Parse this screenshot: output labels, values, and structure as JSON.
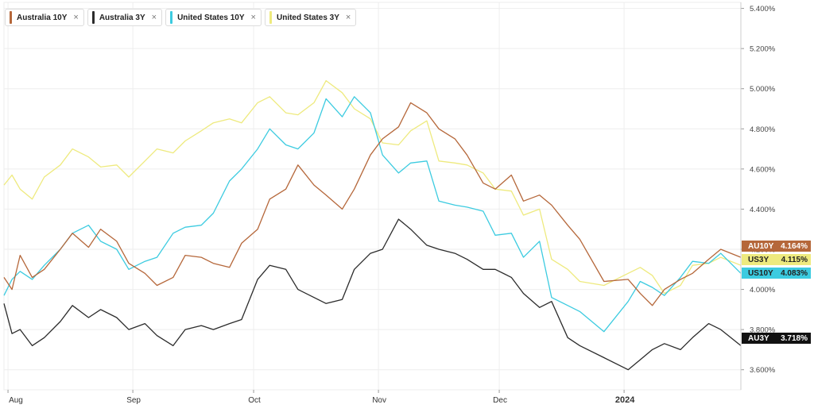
{
  "legend": [
    {
      "label": "Australia 10Y",
      "color": "#b5673a"
    },
    {
      "label": "Australia 3Y",
      "color": "#2b2b2b"
    },
    {
      "label": "United States 10Y",
      "color": "#3ccbe0"
    },
    {
      "label": "United States 3Y",
      "color": "#eeea7e"
    }
  ],
  "close_glyph": "×",
  "tags": [
    {
      "label": "AU10Y",
      "value": "4.164%",
      "bg": "#b5673a",
      "fg": "#ffffff"
    },
    {
      "label": "US3Y",
      "value": "4.115%",
      "bg": "#eeea7e",
      "fg": "#222222"
    },
    {
      "label": "US10Y",
      "value": "4.083%",
      "bg": "#3ccbe0",
      "fg": "#222222"
    },
    {
      "label": "AU3Y",
      "value": "3.718%",
      "bg": "#111111",
      "fg": "#ffffff"
    }
  ],
  "chart_data": {
    "type": "line",
    "x_ticks": [
      "Aug",
      "Sep",
      "Oct",
      "Nov",
      "Dec",
      "2024"
    ],
    "y_ticks": [
      "3.600%",
      "3.800%",
      "4.000%",
      "4.200%",
      "4.400%",
      "4.600%",
      "4.800%",
      "5.000%",
      "5.200%",
      "5.400%"
    ],
    "y_tick_values": [
      3.6,
      3.8,
      4.0,
      4.2,
      4.4,
      4.6,
      4.8,
      5.0,
      5.2,
      5.4
    ],
    "ylim": [
      3.5,
      5.43
    ],
    "x_start": "2023-07-31",
    "x_end": "2024-01-30",
    "grid": true,
    "series": [
      {
        "name": "Australia 10Y",
        "color": "#b5673a",
        "points": [
          [
            "2023-07-31",
            4.06
          ],
          [
            "2023-08-02",
            4.0
          ],
          [
            "2023-08-04",
            4.17
          ],
          [
            "2023-08-07",
            4.06
          ],
          [
            "2023-08-10",
            4.1
          ],
          [
            "2023-08-14",
            4.2
          ],
          [
            "2023-08-17",
            4.28
          ],
          [
            "2023-08-21",
            4.21
          ],
          [
            "2023-08-24",
            4.3
          ],
          [
            "2023-08-28",
            4.24
          ],
          [
            "2023-08-31",
            4.13
          ],
          [
            "2023-09-04",
            4.08
          ],
          [
            "2023-09-07",
            4.02
          ],
          [
            "2023-09-11",
            4.06
          ],
          [
            "2023-09-14",
            4.17
          ],
          [
            "2023-09-18",
            4.16
          ],
          [
            "2023-09-21",
            4.13
          ],
          [
            "2023-09-25",
            4.11
          ],
          [
            "2023-09-28",
            4.23
          ],
          [
            "2023-10-02",
            4.3
          ],
          [
            "2023-10-05",
            4.45
          ],
          [
            "2023-10-09",
            4.5
          ],
          [
            "2023-10-12",
            4.62
          ],
          [
            "2023-10-16",
            4.52
          ],
          [
            "2023-10-19",
            4.47
          ],
          [
            "2023-10-23",
            4.4
          ],
          [
            "2023-10-26",
            4.5
          ],
          [
            "2023-10-30",
            4.67
          ],
          [
            "2023-11-02",
            4.75
          ],
          [
            "2023-11-06",
            4.81
          ],
          [
            "2023-11-09",
            4.93
          ],
          [
            "2023-11-13",
            4.88
          ],
          [
            "2023-11-16",
            4.8
          ],
          [
            "2023-11-20",
            4.75
          ],
          [
            "2023-11-23",
            4.67
          ],
          [
            "2023-11-27",
            4.53
          ],
          [
            "2023-11-30",
            4.5
          ],
          [
            "2023-12-04",
            4.57
          ],
          [
            "2023-12-07",
            4.44
          ],
          [
            "2023-12-11",
            4.47
          ],
          [
            "2023-12-14",
            4.42
          ],
          [
            "2023-12-18",
            4.32
          ],
          [
            "2023-12-21",
            4.25
          ],
          [
            "2023-12-27",
            4.04
          ],
          [
            "2024-01-02",
            4.05
          ],
          [
            "2024-01-05",
            3.98
          ],
          [
            "2024-01-08",
            3.92
          ],
          [
            "2024-01-11",
            4.0
          ],
          [
            "2024-01-15",
            4.05
          ],
          [
            "2024-01-18",
            4.08
          ],
          [
            "2024-01-22",
            4.15
          ],
          [
            "2024-01-25",
            4.2
          ],
          [
            "2024-01-30",
            4.16
          ]
        ]
      },
      {
        "name": "Australia 3Y",
        "color": "#2b2b2b",
        "points": [
          [
            "2023-07-31",
            3.93
          ],
          [
            "2023-08-02",
            3.78
          ],
          [
            "2023-08-04",
            3.8
          ],
          [
            "2023-08-07",
            3.72
          ],
          [
            "2023-08-10",
            3.76
          ],
          [
            "2023-08-14",
            3.84
          ],
          [
            "2023-08-17",
            3.92
          ],
          [
            "2023-08-21",
            3.86
          ],
          [
            "2023-08-24",
            3.9
          ],
          [
            "2023-08-28",
            3.86
          ],
          [
            "2023-08-31",
            3.8
          ],
          [
            "2023-09-04",
            3.83
          ],
          [
            "2023-09-07",
            3.77
          ],
          [
            "2023-09-11",
            3.72
          ],
          [
            "2023-09-14",
            3.8
          ],
          [
            "2023-09-18",
            3.82
          ],
          [
            "2023-09-21",
            3.8
          ],
          [
            "2023-09-25",
            3.83
          ],
          [
            "2023-09-28",
            3.85
          ],
          [
            "2023-10-02",
            4.05
          ],
          [
            "2023-10-05",
            4.12
          ],
          [
            "2023-10-09",
            4.1
          ],
          [
            "2023-10-12",
            4.0
          ],
          [
            "2023-10-16",
            3.96
          ],
          [
            "2023-10-19",
            3.93
          ],
          [
            "2023-10-23",
            3.95
          ],
          [
            "2023-10-26",
            4.1
          ],
          [
            "2023-10-30",
            4.18
          ],
          [
            "2023-11-02",
            4.2
          ],
          [
            "2023-11-06",
            4.35
          ],
          [
            "2023-11-09",
            4.3
          ],
          [
            "2023-11-13",
            4.22
          ],
          [
            "2023-11-16",
            4.2
          ],
          [
            "2023-11-20",
            4.18
          ],
          [
            "2023-11-23",
            4.15
          ],
          [
            "2023-11-27",
            4.1
          ],
          [
            "2023-11-30",
            4.1
          ],
          [
            "2023-12-04",
            4.06
          ],
          [
            "2023-12-07",
            3.98
          ],
          [
            "2023-12-11",
            3.91
          ],
          [
            "2023-12-14",
            3.94
          ],
          [
            "2023-12-18",
            3.76
          ],
          [
            "2023-12-21",
            3.72
          ],
          [
            "2023-12-27",
            3.66
          ],
          [
            "2024-01-02",
            3.6
          ],
          [
            "2024-01-05",
            3.65
          ],
          [
            "2024-01-08",
            3.7
          ],
          [
            "2024-01-11",
            3.73
          ],
          [
            "2024-01-15",
            3.7
          ],
          [
            "2024-01-18",
            3.76
          ],
          [
            "2024-01-22",
            3.83
          ],
          [
            "2024-01-25",
            3.8
          ],
          [
            "2024-01-30",
            3.72
          ]
        ]
      },
      {
        "name": "United States 10Y",
        "color": "#3ccbe0",
        "points": [
          [
            "2023-07-31",
            3.97
          ],
          [
            "2023-08-02",
            4.05
          ],
          [
            "2023-08-04",
            4.09
          ],
          [
            "2023-08-07",
            4.05
          ],
          [
            "2023-08-10",
            4.12
          ],
          [
            "2023-08-14",
            4.2
          ],
          [
            "2023-08-17",
            4.28
          ],
          [
            "2023-08-21",
            4.32
          ],
          [
            "2023-08-24",
            4.24
          ],
          [
            "2023-08-28",
            4.2
          ],
          [
            "2023-08-31",
            4.1
          ],
          [
            "2023-09-04",
            4.14
          ],
          [
            "2023-09-07",
            4.16
          ],
          [
            "2023-09-11",
            4.28
          ],
          [
            "2023-09-14",
            4.31
          ],
          [
            "2023-09-18",
            4.32
          ],
          [
            "2023-09-21",
            4.38
          ],
          [
            "2023-09-25",
            4.54
          ],
          [
            "2023-09-28",
            4.6
          ],
          [
            "2023-10-02",
            4.7
          ],
          [
            "2023-10-05",
            4.8
          ],
          [
            "2023-10-09",
            4.72
          ],
          [
            "2023-10-12",
            4.7
          ],
          [
            "2023-10-16",
            4.78
          ],
          [
            "2023-10-19",
            4.95
          ],
          [
            "2023-10-23",
            4.86
          ],
          [
            "2023-10-26",
            4.96
          ],
          [
            "2023-10-30",
            4.88
          ],
          [
            "2023-11-02",
            4.67
          ],
          [
            "2023-11-06",
            4.58
          ],
          [
            "2023-11-09",
            4.63
          ],
          [
            "2023-11-13",
            4.64
          ],
          [
            "2023-11-16",
            4.44
          ],
          [
            "2023-11-20",
            4.42
          ],
          [
            "2023-11-23",
            4.41
          ],
          [
            "2023-11-27",
            4.39
          ],
          [
            "2023-11-30",
            4.27
          ],
          [
            "2023-12-04",
            4.28
          ],
          [
            "2023-12-07",
            4.16
          ],
          [
            "2023-12-11",
            4.24
          ],
          [
            "2023-12-14",
            3.96
          ],
          [
            "2023-12-18",
            3.92
          ],
          [
            "2023-12-21",
            3.89
          ],
          [
            "2023-12-27",
            3.79
          ],
          [
            "2024-01-02",
            3.94
          ],
          [
            "2024-01-05",
            4.04
          ],
          [
            "2024-01-08",
            4.01
          ],
          [
            "2024-01-11",
            3.97
          ],
          [
            "2024-01-15",
            4.06
          ],
          [
            "2024-01-18",
            4.14
          ],
          [
            "2024-01-22",
            4.13
          ],
          [
            "2024-01-25",
            4.18
          ],
          [
            "2024-01-30",
            4.08
          ]
        ]
      },
      {
        "name": "United States 3Y",
        "color": "#eeea7e",
        "points": [
          [
            "2023-07-31",
            4.52
          ],
          [
            "2023-08-02",
            4.57
          ],
          [
            "2023-08-04",
            4.5
          ],
          [
            "2023-08-07",
            4.45
          ],
          [
            "2023-08-10",
            4.56
          ],
          [
            "2023-08-14",
            4.62
          ],
          [
            "2023-08-17",
            4.7
          ],
          [
            "2023-08-21",
            4.66
          ],
          [
            "2023-08-24",
            4.61
          ],
          [
            "2023-08-28",
            4.62
          ],
          [
            "2023-08-31",
            4.56
          ],
          [
            "2023-09-04",
            4.64
          ],
          [
            "2023-09-07",
            4.7
          ],
          [
            "2023-09-11",
            4.68
          ],
          [
            "2023-09-14",
            4.74
          ],
          [
            "2023-09-18",
            4.79
          ],
          [
            "2023-09-21",
            4.83
          ],
          [
            "2023-09-25",
            4.85
          ],
          [
            "2023-09-28",
            4.83
          ],
          [
            "2023-10-02",
            4.93
          ],
          [
            "2023-10-05",
            4.96
          ],
          [
            "2023-10-09",
            4.88
          ],
          [
            "2023-10-12",
            4.87
          ],
          [
            "2023-10-16",
            4.93
          ],
          [
            "2023-10-19",
            5.04
          ],
          [
            "2023-10-23",
            4.98
          ],
          [
            "2023-10-26",
            4.9
          ],
          [
            "2023-10-30",
            4.85
          ],
          [
            "2023-11-02",
            4.73
          ],
          [
            "2023-11-06",
            4.72
          ],
          [
            "2023-11-09",
            4.79
          ],
          [
            "2023-11-13",
            4.84
          ],
          [
            "2023-11-16",
            4.64
          ],
          [
            "2023-11-20",
            4.63
          ],
          [
            "2023-11-23",
            4.62
          ],
          [
            "2023-11-27",
            4.58
          ],
          [
            "2023-11-30",
            4.5
          ],
          [
            "2023-12-04",
            4.49
          ],
          [
            "2023-12-07",
            4.37
          ],
          [
            "2023-12-11",
            4.4
          ],
          [
            "2023-12-14",
            4.15
          ],
          [
            "2023-12-18",
            4.1
          ],
          [
            "2023-12-21",
            4.04
          ],
          [
            "2023-12-27",
            4.02
          ],
          [
            "2024-01-02",
            4.08
          ],
          [
            "2024-01-05",
            4.11
          ],
          [
            "2024-01-08",
            4.07
          ],
          [
            "2024-01-11",
            3.98
          ],
          [
            "2024-01-15",
            4.02
          ],
          [
            "2024-01-18",
            4.12
          ],
          [
            "2024-01-22",
            4.13
          ],
          [
            "2024-01-25",
            4.16
          ],
          [
            "2024-01-30",
            4.12
          ]
        ]
      }
    ]
  }
}
